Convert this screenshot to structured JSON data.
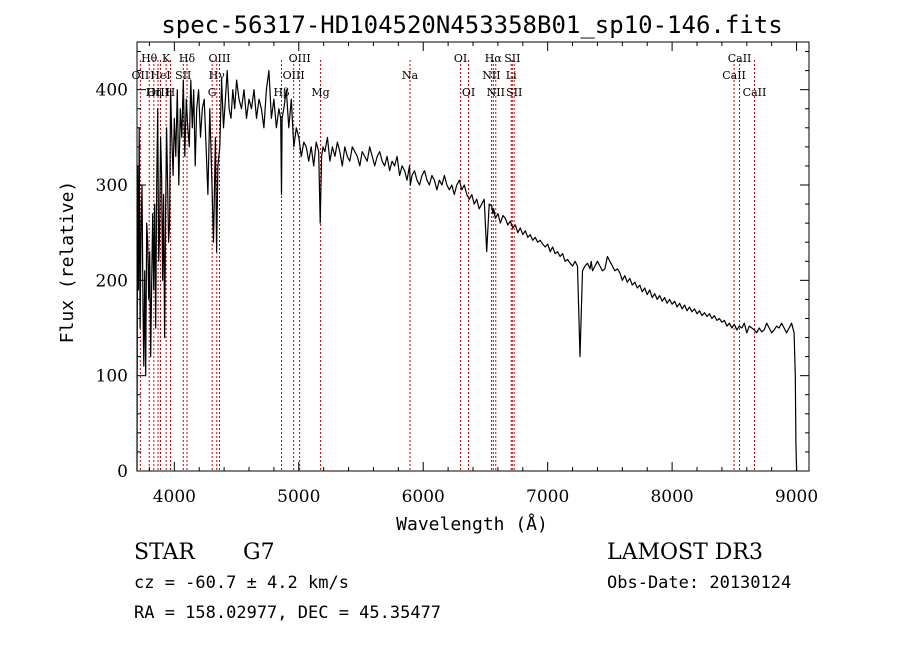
{
  "chart_data": {
    "type": "line",
    "title": "spec-56317-HD104520N453358B01_sp10-146.fits",
    "xlabel": "Wavelength (Å)",
    "ylabel": "Flux (relative)",
    "xlim": [
      3700,
      9100
    ],
    "ylim": [
      0,
      450
    ],
    "xticks": [
      4000,
      5000,
      6000,
      7000,
      8000,
      9000
    ],
    "yticks": [
      0,
      100,
      200,
      300,
      400
    ],
    "series": [
      {
        "name": "flux",
        "x": [
          3700,
          3705,
          3712,
          3718,
          3725,
          3732,
          3740,
          3748,
          3755,
          3762,
          3770,
          3778,
          3786,
          3794,
          3802,
          3810,
          3818,
          3826,
          3834,
          3842,
          3850,
          3858,
          3866,
          3874,
          3882,
          3890,
          3898,
          3906,
          3914,
          3922,
          3930,
          3938,
          3946,
          3954,
          3962,
          3970,
          3980,
          3990,
          4000,
          4012,
          4024,
          4036,
          4048,
          4060,
          4072,
          4084,
          4096,
          4108,
          4120,
          4132,
          4144,
          4156,
          4168,
          4180,
          4195,
          4210,
          4225,
          4240,
          4255,
          4270,
          4285,
          4300,
          4315,
          4330,
          4340,
          4350,
          4365,
          4380,
          4395,
          4410,
          4425,
          4440,
          4455,
          4470,
          4485,
          4500,
          4520,
          4540,
          4560,
          4580,
          4600,
          4620,
          4640,
          4660,
          4680,
          4700,
          4720,
          4740,
          4760,
          4780,
          4800,
          4820,
          4840,
          4855,
          4861,
          4866,
          4880,
          4900,
          4920,
          4940,
          4960,
          4980,
          5000,
          5020,
          5040,
          5060,
          5080,
          5100,
          5120,
          5140,
          5160,
          5172,
          5183,
          5195,
          5210,
          5230,
          5250,
          5270,
          5290,
          5310,
          5330,
          5350,
          5370,
          5390,
          5410,
          5430,
          5450,
          5470,
          5490,
          5510,
          5530,
          5550,
          5570,
          5590,
          5610,
          5630,
          5650,
          5670,
          5690,
          5710,
          5730,
          5750,
          5770,
          5790,
          5810,
          5830,
          5850,
          5870,
          5890,
          5893,
          5896,
          5910,
          5930,
          5950,
          5970,
          5990,
          6010,
          6030,
          6050,
          6070,
          6090,
          6110,
          6130,
          6150,
          6170,
          6190,
          6210,
          6230,
          6250,
          6270,
          6290,
          6310,
          6330,
          6350,
          6370,
          6390,
          6410,
          6430,
          6450,
          6470,
          6490,
          6510,
          6530,
          6550,
          6560,
          6563,
          6566,
          6580,
          6600,
          6620,
          6640,
          6660,
          6680,
          6700,
          6720,
          6740,
          6760,
          6780,
          6800,
          6820,
          6840,
          6860,
          6880,
          6900,
          6920,
          6940,
          6960,
          6980,
          7000,
          7020,
          7040,
          7060,
          7080,
          7100,
          7120,
          7140,
          7160,
          7180,
          7200,
          7220,
          7240,
          7260,
          7280,
          7300,
          7320,
          7340,
          7350,
          7355,
          7360,
          7380,
          7400,
          7420,
          7440,
          7460,
          7480,
          7500,
          7520,
          7540,
          7560,
          7580,
          7600,
          7620,
          7640,
          7660,
          7680,
          7700,
          7720,
          7740,
          7760,
          7780,
          7800,
          7820,
          7840,
          7860,
          7880,
          7900,
          7920,
          7940,
          7960,
          7980,
          8000,
          8020,
          8040,
          8060,
          8080,
          8100,
          8120,
          8140,
          8160,
          8180,
          8200,
          8220,
          8240,
          8260,
          8280,
          8300,
          8320,
          8340,
          8360,
          8380,
          8400,
          8420,
          8440,
          8460,
          8480,
          8500,
          8520,
          8540,
          8560,
          8580,
          8600,
          8620,
          8640,
          8660,
          8680,
          8700,
          8720,
          8740,
          8760,
          8780,
          8800,
          8820,
          8840,
          8860,
          8880,
          8900,
          8920,
          8940,
          8960,
          8980,
          8990,
          8995,
          9000
        ],
        "y": [
          0,
          320,
          190,
          360,
          150,
          250,
          300,
          170,
          110,
          210,
          100,
          260,
          240,
          180,
          230,
          120,
          200,
          270,
          190,
          280,
          150,
          300,
          380,
          220,
          250,
          350,
          310,
          200,
          290,
          140,
          270,
          360,
          300,
          240,
          260,
          400,
          350,
          310,
          370,
          330,
          400,
          300,
          380,
          350,
          410,
          330,
          390,
          360,
          340,
          410,
          360,
          400,
          320,
          380,
          400,
          350,
          380,
          390,
          340,
          290,
          380,
          310,
          240,
          350,
          230,
          320,
          340,
          410,
          360,
          390,
          420,
          380,
          370,
          400,
          380,
          410,
          390,
          380,
          400,
          370,
          390,
          380,
          400,
          370,
          390,
          380,
          360,
          400,
          420,
          370,
          390,
          360,
          380,
          370,
          290,
          370,
          380,
          400,
          360,
          390,
          340,
          360,
          350,
          330,
          345,
          340,
          325,
          340,
          320,
          345,
          335,
          260,
          330,
          340,
          335,
          350,
          325,
          340,
          330,
          345,
          335,
          320,
          340,
          330,
          325,
          340,
          335,
          330,
          320,
          335,
          330,
          325,
          340,
          330,
          320,
          330,
          335,
          325,
          320,
          330,
          315,
          325,
          320,
          330,
          310,
          320,
          315,
          305,
          320,
          310,
          300,
          310,
          315,
          305,
          300,
          310,
          315,
          305,
          300,
          310,
          305,
          295,
          305,
          300,
          310,
          300,
          295,
          300,
          290,
          300,
          305,
          295,
          300,
          290,
          285,
          290,
          280,
          285,
          275,
          280,
          285,
          230,
          280,
          278,
          270,
          272,
          275,
          265,
          270,
          260,
          268,
          265,
          258,
          262,
          255,
          258,
          250,
          255,
          248,
          252,
          245,
          248,
          242,
          245,
          240,
          242,
          238,
          235,
          238,
          230,
          235,
          228,
          230,
          225,
          228,
          220,
          222,
          218,
          215,
          220,
          215,
          120,
          210,
          215,
          218,
          212,
          220,
          215,
          210,
          215,
          220,
          215,
          210,
          212,
          225,
          220,
          215,
          210,
          212,
          208,
          200,
          205,
          198,
          202,
          195,
          198,
          192,
          195,
          188,
          192,
          185,
          190,
          182,
          186,
          180,
          184,
          178,
          182,
          176,
          180,
          175,
          178,
          172,
          176,
          170,
          174,
          168,
          172,
          167,
          170,
          165,
          168,
          163,
          166,
          162,
          165,
          160,
          163,
          158,
          160,
          156,
          158,
          152,
          155,
          150,
          154,
          148,
          152,
          150,
          155,
          145,
          152,
          150,
          148,
          145,
          150,
          146,
          148,
          155,
          150,
          145,
          148,
          152,
          150,
          155,
          150,
          145,
          150,
          155,
          145,
          100,
          30,
          0
        ]
      }
    ],
    "lines": [
      {
        "name": "OII",
        "wavelength": 3727,
        "row": 2
      },
      {
        "name": "Hθ",
        "wavelength": 3798,
        "row": 1
      },
      {
        "name": "OIII",
        "wavelength": 3869,
        "row": 3
      },
      {
        "name": "Hη",
        "wavelength": 3835,
        "row": 3
      },
      {
        "name": "HeI",
        "wavelength": 3889,
        "row": 2
      },
      {
        "name": "K",
        "wavelength": 3934,
        "row": 1
      },
      {
        "name": "H",
        "wavelength": 3969,
        "row": 3
      },
      {
        "name": "SII",
        "wavelength": 4072,
        "row": 2
      },
      {
        "name": "Hδ",
        "wavelength": 4102,
        "row": 1
      },
      {
        "name": "G",
        "wavelength": 4304,
        "row": 3
      },
      {
        "name": "Hγ",
        "wavelength": 4341,
        "row": 2
      },
      {
        "name": "OIII",
        "wavelength": 4363,
        "row": 1
      },
      {
        "name": "Hβ",
        "wavelength": 4861,
        "row": 3
      },
      {
        "name": "OIII",
        "wavelength": 4959,
        "row": 2
      },
      {
        "name": "OIII",
        "wavelength": 5007,
        "row": 1
      },
      {
        "name": "Mg",
        "wavelength": 5175,
        "row": 3
      },
      {
        "name": "Na",
        "wavelength": 5894,
        "row": 2
      },
      {
        "name": "OI",
        "wavelength": 6300,
        "row": 1
      },
      {
        "name": "OI",
        "wavelength": 6364,
        "row": 3
      },
      {
        "name": "NII",
        "wavelength": 6548,
        "row": 2
      },
      {
        "name": "Hα",
        "wavelength": 6563,
        "row": 1
      },
      {
        "name": "NII",
        "wavelength": 6583,
        "row": 3
      },
      {
        "name": "Li",
        "wavelength": 6707,
        "row": 2
      },
      {
        "name": "SII",
        "wavelength": 6716,
        "row": 1
      },
      {
        "name": "SII",
        "wavelength": 6731,
        "row": 3
      },
      {
        "name": "CaII",
        "wavelength": 8498,
        "row": 2
      },
      {
        "name": "CaII",
        "wavelength": 8542,
        "row": 1
      },
      {
        "name": "CaII",
        "wavelength": 8662,
        "row": 3
      }
    ],
    "colors": {
      "spectrum": "#000000",
      "line_marker": "#cc0000"
    }
  },
  "footer": {
    "object_type": "STAR",
    "subclass": "G7",
    "redshift": "cz = -60.7 ± 4.2 km/s",
    "coords": "RA = 158.02977, DEC =  45.35477",
    "survey": "LAMOST DR3",
    "obs_date": "Obs-Date: 20130124"
  }
}
